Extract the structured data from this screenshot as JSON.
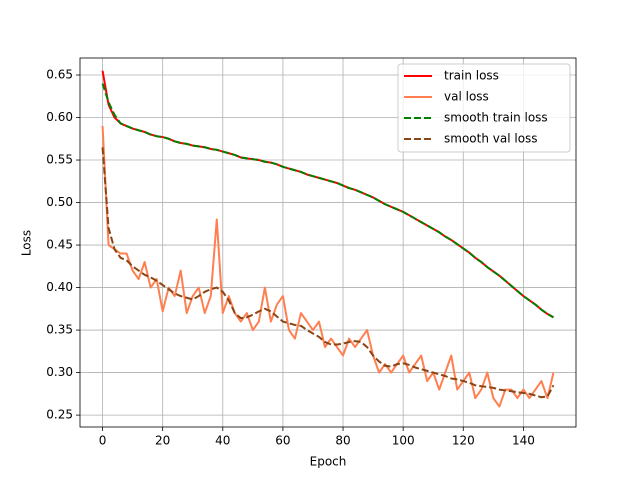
{
  "chart_data": {
    "type": "line",
    "xlabel": "Epoch",
    "ylabel": "Loss",
    "x": [
      0,
      2,
      4,
      6,
      8,
      10,
      12,
      14,
      16,
      18,
      20,
      22,
      24,
      26,
      28,
      30,
      32,
      34,
      36,
      38,
      40,
      42,
      44,
      46,
      48,
      50,
      52,
      54,
      56,
      58,
      60,
      62,
      64,
      66,
      68,
      70,
      72,
      74,
      76,
      78,
      80,
      82,
      84,
      86,
      88,
      90,
      92,
      94,
      96,
      98,
      100,
      102,
      104,
      106,
      108,
      110,
      112,
      114,
      116,
      118,
      120,
      122,
      124,
      126,
      128,
      130,
      132,
      134,
      136,
      138,
      140,
      142,
      144,
      146,
      148,
      150
    ],
    "series": [
      {
        "name": "train loss",
        "color": "#ff0000",
        "style": "solid",
        "values": [
          0.655,
          0.615,
          0.6,
          0.593,
          0.59,
          0.587,
          0.585,
          0.583,
          0.58,
          0.578,
          0.577,
          0.575,
          0.572,
          0.57,
          0.569,
          0.567,
          0.566,
          0.565,
          0.563,
          0.562,
          0.56,
          0.558,
          0.556,
          0.553,
          0.552,
          0.551,
          0.55,
          0.548,
          0.547,
          0.545,
          0.542,
          0.54,
          0.538,
          0.536,
          0.533,
          0.531,
          0.529,
          0.527,
          0.525,
          0.523,
          0.52,
          0.517,
          0.515,
          0.512,
          0.509,
          0.506,
          0.502,
          0.498,
          0.495,
          0.492,
          0.489,
          0.485,
          0.481,
          0.477,
          0.473,
          0.469,
          0.465,
          0.46,
          0.456,
          0.451,
          0.446,
          0.441,
          0.435,
          0.43,
          0.424,
          0.419,
          0.414,
          0.408,
          0.402,
          0.396,
          0.39,
          0.385,
          0.38,
          0.374,
          0.369,
          0.365
        ]
      },
      {
        "name": "val loss",
        "color": "#ff7f50",
        "style": "solid",
        "values": [
          0.59,
          0.45,
          0.445,
          0.44,
          0.44,
          0.42,
          0.41,
          0.43,
          0.4,
          0.41,
          0.372,
          0.4,
          0.39,
          0.42,
          0.37,
          0.39,
          0.4,
          0.37,
          0.39,
          0.48,
          0.37,
          0.39,
          0.37,
          0.36,
          0.37,
          0.35,
          0.36,
          0.4,
          0.36,
          0.38,
          0.39,
          0.35,
          0.34,
          0.37,
          0.36,
          0.35,
          0.36,
          0.33,
          0.34,
          0.33,
          0.32,
          0.34,
          0.33,
          0.34,
          0.35,
          0.32,
          0.3,
          0.31,
          0.3,
          0.31,
          0.32,
          0.3,
          0.31,
          0.32,
          0.29,
          0.3,
          0.28,
          0.3,
          0.32,
          0.28,
          0.29,
          0.3,
          0.27,
          0.28,
          0.3,
          0.27,
          0.26,
          0.28,
          0.28,
          0.27,
          0.28,
          0.27,
          0.28,
          0.29,
          0.27,
          0.3
        ]
      },
      {
        "name": "smooth train loss",
        "color": "#008000",
        "style": "dashed",
        "values": [
          0.64,
          0.618,
          0.603,
          0.593,
          0.59,
          0.587,
          0.585,
          0.583,
          0.58,
          0.578,
          0.577,
          0.575,
          0.572,
          0.57,
          0.569,
          0.567,
          0.566,
          0.565,
          0.563,
          0.562,
          0.56,
          0.558,
          0.556,
          0.553,
          0.552,
          0.551,
          0.55,
          0.548,
          0.547,
          0.545,
          0.542,
          0.54,
          0.538,
          0.536,
          0.533,
          0.531,
          0.529,
          0.527,
          0.525,
          0.523,
          0.52,
          0.517,
          0.515,
          0.512,
          0.509,
          0.506,
          0.502,
          0.498,
          0.495,
          0.492,
          0.489,
          0.485,
          0.481,
          0.477,
          0.473,
          0.469,
          0.465,
          0.46,
          0.456,
          0.451,
          0.446,
          0.441,
          0.435,
          0.43,
          0.424,
          0.419,
          0.414,
          0.408,
          0.402,
          0.396,
          0.39,
          0.385,
          0.38,
          0.374,
          0.369,
          0.365
        ]
      },
      {
        "name": "smooth val loss",
        "color": "#8b4513",
        "style": "dashed",
        "values": [
          0.565,
          0.47,
          0.445,
          0.435,
          0.432,
          0.425,
          0.42,
          0.415,
          0.412,
          0.408,
          0.403,
          0.398,
          0.393,
          0.39,
          0.388,
          0.386,
          0.39,
          0.395,
          0.398,
          0.4,
          0.395,
          0.385,
          0.37,
          0.364,
          0.365,
          0.368,
          0.372,
          0.375,
          0.372,
          0.366,
          0.36,
          0.358,
          0.356,
          0.355,
          0.35,
          0.346,
          0.342,
          0.336,
          0.333,
          0.333,
          0.334,
          0.336,
          0.337,
          0.336,
          0.33,
          0.32,
          0.313,
          0.308,
          0.307,
          0.31,
          0.311,
          0.309,
          0.306,
          0.304,
          0.302,
          0.3,
          0.298,
          0.296,
          0.293,
          0.292,
          0.29,
          0.288,
          0.285,
          0.284,
          0.283,
          0.282,
          0.28,
          0.279,
          0.278,
          0.277,
          0.276,
          0.275,
          0.273,
          0.271,
          0.272,
          0.285
        ]
      }
    ],
    "xlim": [
      -7.5,
      157.5
    ],
    "xticks": [
      0,
      20,
      40,
      60,
      80,
      100,
      120,
      140
    ],
    "ylim": [
      0.236,
      0.67
    ],
    "yticks": [
      0.25,
      {
        "value": 0.3,
        "label": "0.30"
      },
      0.35,
      {
        "value": 0.4,
        "label": "0.40"
      },
      0.45,
      {
        "value": 0.5,
        "label": "0.50"
      },
      0.55,
      {
        "value": 0.6,
        "label": "0.60"
      },
      0.65
    ],
    "grid": true,
    "legend": "upper-right"
  }
}
